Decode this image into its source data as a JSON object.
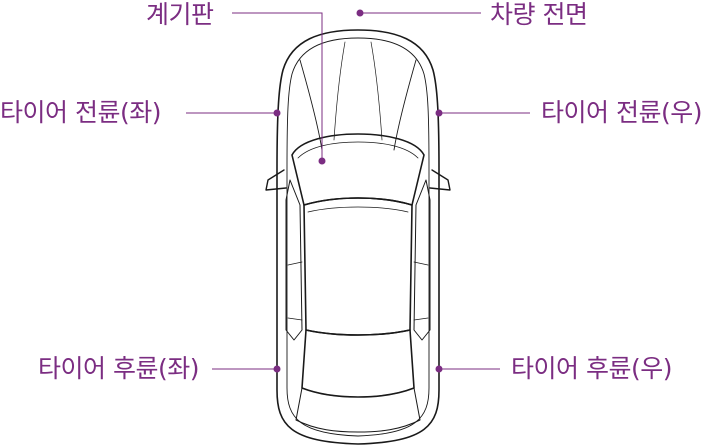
{
  "labels": {
    "dashboard": "계기판",
    "vehicle_front": "차량 전면",
    "tire_front_left": "타이어 전륜(좌)",
    "tire_front_right": "타이어 전륜(우)",
    "tire_rear_left": "타이어 후륜(좌)",
    "tire_rear_right": "타이어 후륜(우)"
  },
  "colors": {
    "accent": "#7b2d82",
    "outline": "#1a1a1a"
  }
}
